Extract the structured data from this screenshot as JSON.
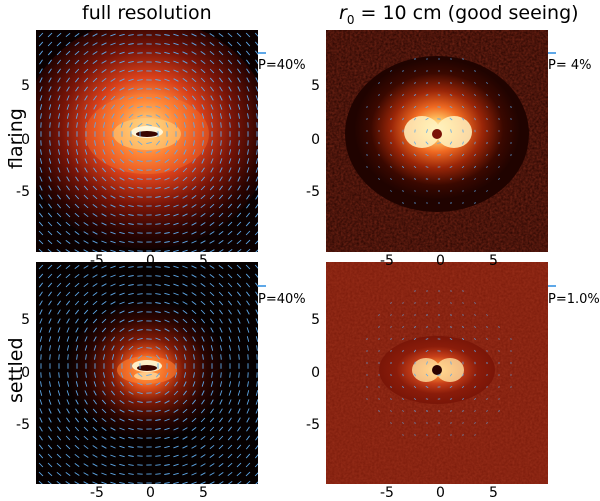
{
  "figure": {
    "columns": [
      {
        "title": "full resolution"
      },
      {
        "title_italic": "r",
        "title_sub": "0",
        "title_rest": " = 10 cm (good seeing)"
      }
    ],
    "rows": [
      {
        "label": "flaring"
      },
      {
        "label": "settled"
      }
    ],
    "panels": [
      {
        "id": "flaring-full",
        "pol_label": "P=40%",
        "pol_percent": 40
      },
      {
        "id": "flaring-seeing",
        "pol_label": "P= 4%",
        "pol_percent": 4
      },
      {
        "id": "settled-full",
        "pol_label": "P=40%",
        "pol_percent": 40
      },
      {
        "id": "settled-seeing",
        "pol_label": "P=1.0%",
        "pol_percent": 1.0
      }
    ],
    "axis_ticks": {
      "x": [
        "-5",
        "0",
        "5"
      ],
      "y": [
        "5",
        "0",
        "-5"
      ]
    },
    "colors": {
      "vector": "#5fa8e8",
      "background": "#1a0000",
      "core": "#fff6c8"
    }
  }
}
